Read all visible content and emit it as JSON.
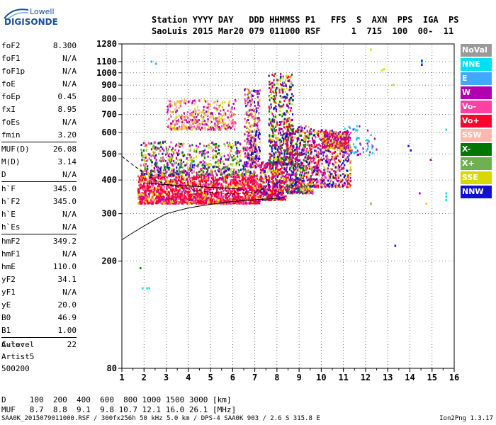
{
  "logo": {
    "line1": "Lowell",
    "line2": "DIGISONDE"
  },
  "header": {
    "line1": "Station YYYY DAY   DDD HHMMSS P1   FFS  S  AXN  PPS  IGA  PS",
    "line2": "SaoLuis 2015 Mar20 079 011000 RSF      1  715  100  00-  11"
  },
  "params": [
    [
      {
        "name": "foF2",
        "value": "8.300"
      },
      {
        "name": "foF1",
        "value": "N/A"
      },
      {
        "name": "foF1p",
        "value": "N/A"
      },
      {
        "name": "foE",
        "value": "N/A"
      },
      {
        "name": "foEp",
        "value": "0.45"
      },
      {
        "name": "fxI",
        "value": "8.95"
      },
      {
        "name": "foEs",
        "value": "N/A"
      },
      {
        "name": "fmin",
        "value": "3.20"
      }
    ],
    [
      {
        "name": "MUF(D)",
        "value": "26.08"
      },
      {
        "name": "M(D)",
        "value": "3.14"
      },
      {
        "name": "D",
        "value": "N/A"
      }
    ],
    [
      {
        "name": "h`F",
        "value": "345.0"
      },
      {
        "name": "h`F2",
        "value": "345.0"
      },
      {
        "name": "h`E",
        "value": "N/A"
      },
      {
        "name": "h`Es",
        "value": "N/A"
      }
    ],
    [
      {
        "name": "hmF2",
        "value": "349.2"
      },
      {
        "name": "hmF1",
        "value": "N/A"
      },
      {
        "name": "hmE",
        "value": "110.0"
      },
      {
        "name": "yF2",
        "value": "34.1"
      },
      {
        "name": "yF1",
        "value": "N/A"
      },
      {
        "name": "yE",
        "value": "20.0"
      },
      {
        "name": "B0",
        "value": "46.9"
      },
      {
        "name": "B1",
        "value": "1.00"
      }
    ],
    [
      {
        "name": "C-level",
        "value": "22"
      }
    ]
  ],
  "auto": {
    "line1": "Auto:",
    "line2": "Artist5",
    "line3": "500200"
  },
  "dmuf": {
    "d_line": "D     100  200  400  600  800 1000 1500 3000 [km]",
    "muf_line": "MUF   8.7  8.8  9.1  9.8 10.7 12.1 16.0 26.1 [MHz]"
  },
  "footer": "SAA0K_2015079011000.RSF / 300fx256h 50 kHz 5.0 km / DPS-4 SAA0K 903 / 2.6 S 315.8 E",
  "version": "Ion2Png 1.3.17",
  "legend": [
    {
      "label": "NoVal",
      "color": "#9a9a9a"
    },
    {
      "label": "NNE",
      "color": "#00e0f0"
    },
    {
      "label": "E",
      "color": "#40a8ff"
    },
    {
      "label": "W",
      "color": "#b000b0"
    },
    {
      "label": "Vo-",
      "color": "#ff40a0"
    },
    {
      "label": "Vo+",
      "color": "#ff0030"
    },
    {
      "label": "SSW",
      "color": "#ffb8b0"
    },
    {
      "label": "X-",
      "color": "#007800"
    },
    {
      "label": "X+",
      "color": "#70b050"
    },
    {
      "label": "SSE",
      "color": "#d8d800"
    },
    {
      "label": "NNW",
      "color": "#1010d0"
    }
  ],
  "chart_data": {
    "type": "scatter",
    "title": "",
    "xlabel": "",
    "ylabel": "",
    "xlim": [
      1,
      16
    ],
    "ylim": [
      80,
      1280
    ],
    "yscale": "log",
    "grid": true,
    "legend_position": "right",
    "x_ticks": [
      "1",
      "2",
      "3",
      "4",
      "5",
      "6",
      "7",
      "8",
      "9",
      "10",
      "11",
      "12",
      "13",
      "14",
      "15",
      "16"
    ],
    "y_ticks": [
      {
        "v": 80,
        "label": "80"
      },
      {
        "v": 200,
        "label": "200"
      },
      {
        "v": 300,
        "label": "300"
      },
      {
        "v": 400,
        "label": "400"
      },
      {
        "v": 500,
        "label": "500"
      },
      {
        "v": 600,
        "label": "600"
      },
      {
        "v": 700,
        "label": "700"
      },
      {
        "v": 800,
        "label": "800"
      },
      {
        "v": 900,
        "label": "900"
      },
      {
        "v": 1000,
        "label": "1000"
      },
      {
        "v": 1100,
        "label": "1100"
      },
      {
        "v": 1280,
        "label": "1280"
      }
    ],
    "traces": [
      {
        "name": "dashed",
        "style": "dashed",
        "points": [
          [
            1,
            490
          ],
          [
            1.5,
            455
          ],
          [
            2,
            425
          ],
          [
            2.5,
            400
          ],
          [
            3,
            385
          ],
          [
            4,
            370
          ],
          [
            5,
            360
          ],
          [
            6,
            355
          ],
          [
            7,
            360
          ],
          [
            7.5,
            375
          ]
        ]
      },
      {
        "name": "solid_lower",
        "style": "solid",
        "points": [
          [
            1,
            240
          ],
          [
            1.5,
            255
          ],
          [
            2,
            270
          ],
          [
            2.5,
            285
          ],
          [
            3,
            300
          ],
          [
            4,
            315
          ],
          [
            5,
            325
          ],
          [
            6,
            333
          ],
          [
            7,
            338
          ],
          [
            8,
            342
          ],
          [
            8.3,
            345
          ]
        ]
      },
      {
        "name": "solid_upper",
        "style": "solid",
        "points": [
          [
            2,
            390
          ],
          [
            3,
            385
          ],
          [
            4,
            380
          ],
          [
            5,
            376
          ],
          [
            6,
            372
          ],
          [
            6.5,
            368
          ]
        ]
      }
    ],
    "echo_regions": [
      {
        "x": [
          1.7,
          7.2
        ],
        "y": [
          330,
          420
        ],
        "density": 1800,
        "colors": [
          "#ff0030",
          "#ff0030",
          "#ff40a0",
          "#d8d800",
          "#b000b0",
          "#ff0030"
        ]
      },
      {
        "x": [
          7.2,
          8.4
        ],
        "y": [
          340,
          470
        ],
        "density": 450,
        "colors": [
          "#ff0030",
          "#ff0030",
          "#b000b0",
          "#d8d800",
          "#1010d0"
        ]
      },
      {
        "x": [
          8.4,
          9.6
        ],
        "y": [
          360,
          640
        ],
        "density": 600,
        "colors": [
          "#ff0030",
          "#b000b0",
          "#1010d0",
          "#d8d800",
          "#ff40a0",
          "#007800"
        ]
      },
      {
        "x": [
          9.6,
          11.3
        ],
        "y": [
          380,
          620
        ],
        "density": 500,
        "colors": [
          "#ff0030",
          "#b000b0",
          "#d8d800",
          "#ff40a0",
          "#1010d0"
        ]
      },
      {
        "x": [
          10.0,
          11.2
        ],
        "y": [
          530,
          610
        ],
        "density": 300,
        "colors": [
          "#b000b0",
          "#d8d800",
          "#ff0030"
        ]
      },
      {
        "x": [
          3.0,
          6.1
        ],
        "y": [
          620,
          800
        ],
        "density": 420,
        "colors": [
          "#ff40a0",
          "#d8d800",
          "#b000b0",
          "#ffb8b0"
        ]
      },
      {
        "x": [
          1.8,
          7.0
        ],
        "y": [
          420,
          560
        ],
        "density": 700,
        "colors": [
          "#d8d800",
          "#1010d0",
          "#b000b0",
          "#ff40a0",
          "#007800",
          "#70b050"
        ]
      },
      {
        "x": [
          6.5,
          7.2
        ],
        "y": [
          450,
          880
        ],
        "density": 300,
        "colors": [
          "#d8d800",
          "#b000b0",
          "#1010d0",
          "#ff40a0"
        ]
      },
      {
        "x": [
          7.6,
          8.7
        ],
        "y": [
          460,
          1000
        ],
        "density": 520,
        "colors": [
          "#d8d800",
          "#b000b0",
          "#1010d0",
          "#ff0030",
          "#007800"
        ]
      },
      {
        "x": [
          11.0,
          12.5
        ],
        "y": [
          500,
          640
        ],
        "density": 60,
        "colors": [
          "#00e0f0",
          "#40a8ff",
          "#b000b0"
        ]
      }
    ],
    "isolated_points": [
      [
        2.3,
        1110,
        "#40a8ff"
      ],
      [
        12.2,
        1230,
        "#d8d800"
      ],
      [
        12.7,
        1030,
        "#d8d800"
      ],
      [
        12.8,
        1040,
        "#d8d800"
      ],
      [
        13.2,
        910,
        "#d8d800"
      ],
      [
        14.5,
        1120,
        "#1010d0"
      ],
      [
        14.5,
        1100,
        "#00e0f0"
      ],
      [
        14.5,
        1080,
        "#1010d0"
      ],
      [
        15.6,
        620,
        "#00e0f0"
      ],
      [
        15.6,
        340,
        "#00e0f0"
      ],
      [
        15.6,
        360,
        "#00e0f0"
      ],
      [
        15.6,
        350,
        "#00e0f0"
      ],
      [
        14.4,
        360,
        "#b000b0"
      ],
      [
        14.7,
        330,
        "#d8d800"
      ],
      [
        13.3,
        230,
        "#1010d0"
      ],
      [
        12.2,
        330,
        "#70b050"
      ],
      [
        1.8,
        190,
        "#007800"
      ],
      [
        1.9,
        160,
        "#00e0f0"
      ],
      [
        2.1,
        160,
        "#00e0f0"
      ],
      [
        2.2,
        160,
        "#00e0f0"
      ],
      [
        13.9,
        540,
        "#1010d0"
      ],
      [
        14.0,
        520,
        "#1010d0"
      ],
      [
        14.9,
        480,
        "#b000b0"
      ],
      [
        2.5,
        1090,
        "#40a8ff"
      ]
    ]
  }
}
